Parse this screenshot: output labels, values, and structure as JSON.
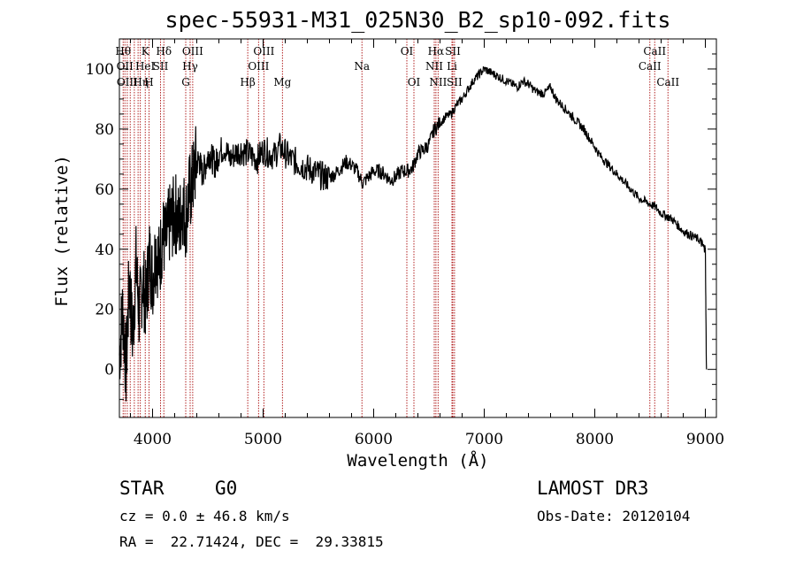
{
  "chart_data": {
    "type": "line",
    "title": "spec-55931-M31_025N30_B2_sp10-092.fits",
    "xlabel": "Wavelength (Å)",
    "ylabel": "Flux (relative)",
    "xlim": [
      3700,
      9100
    ],
    "ylim": [
      -16,
      110
    ],
    "xticks": [
      4000,
      5000,
      6000,
      7000,
      8000,
      9000
    ],
    "yticks": [
      0,
      20,
      40,
      60,
      80,
      100
    ],
    "grid": false,
    "line_color": "#000000",
    "marker_color": "#b22222",
    "series": [
      {
        "x": [
          3700,
          3730,
          3760,
          3790,
          3820,
          3850,
          3880,
          3910,
          3940,
          3970,
          4000,
          4030,
          4060,
          4090,
          4120,
          4150,
          4180,
          4210,
          4240,
          4270,
          4300,
          4330,
          4360,
          4390,
          4420,
          4450,
          4480,
          4510,
          4540,
          4570,
          4600,
          4650,
          4700,
          4750,
          4800,
          4850,
          4900,
          4950,
          5000,
          5050,
          5100,
          5150,
          5200,
          5250,
          5300,
          5350,
          5400,
          5450,
          5500,
          5550,
          5600,
          5650,
          5700,
          5750,
          5800,
          5850,
          5900,
          5950,
          6000,
          6050,
          6100,
          6150,
          6200,
          6250,
          6300,
          6350,
          6400,
          6450,
          6500,
          6550,
          6600,
          6650,
          6700,
          6750,
          6800,
          6850,
          6900,
          6950,
          7000,
          7050,
          7100,
          7150,
          7200,
          7250,
          7300,
          7350,
          7400,
          7450,
          7500,
          7550,
          7600,
          7650,
          7700,
          7750,
          7800,
          7850,
          7900,
          7950,
          8000,
          8050,
          8100,
          8150,
          8200,
          8250,
          8300,
          8350,
          8400,
          8450,
          8500,
          8550,
          8600,
          8650,
          8700,
          8750,
          8800,
          8850,
          8900,
          8950,
          8980,
          9000,
          9010
        ],
        "y": [
          5,
          20,
          0,
          30,
          10,
          35,
          18,
          30,
          22,
          38,
          30,
          40,
          35,
          45,
          42,
          48,
          50,
          52,
          48,
          55,
          50,
          58,
          62,
          68,
          70,
          65,
          68,
          72,
          70,
          68,
          72,
          74,
          70,
          72,
          73,
          72,
          71,
          70,
          73,
          72,
          71,
          74,
          72,
          70,
          69,
          68,
          67,
          66,
          65,
          64,
          64,
          65,
          67,
          69,
          68,
          66,
          62,
          64,
          66,
          66,
          65,
          63,
          64,
          66,
          66,
          67,
          72,
          73,
          75,
          80,
          82,
          84,
          85,
          88,
          90,
          93,
          96,
          98,
          100,
          99,
          98,
          97,
          96,
          95,
          94,
          96,
          95,
          93,
          92,
          92,
          94,
          90,
          88,
          86,
          84,
          82,
          80,
          77,
          74,
          71,
          69,
          67,
          65,
          63,
          61,
          59,
          57,
          56,
          55,
          54,
          52,
          51,
          50,
          48,
          46,
          45,
          44,
          43,
          41,
          40,
          0
        ]
      }
    ],
    "lines": [
      {
        "wl": 3734,
        "label": "Hθ",
        "row": 1,
        "offset": 0
      },
      {
        "wl": 3750,
        "label": "OII",
        "row": 2,
        "offset": 0
      },
      {
        "wl": 3771,
        "label": "OIII",
        "row": 3,
        "offset": 0
      },
      {
        "wl": 3798,
        "label": "Hη",
        "row": 3,
        "offset": 12
      },
      {
        "wl": 3835,
        "label": "",
        "row": 0,
        "offset": 0
      },
      {
        "wl": 3869,
        "label": "HeI",
        "row": 2,
        "offset": 8
      },
      {
        "wl": 3889,
        "label": "",
        "row": 0,
        "offset": 0
      },
      {
        "wl": 3934,
        "label": "K",
        "row": 1,
        "offset": 0
      },
      {
        "wl": 3968,
        "label": "H",
        "row": 3,
        "offset": 0
      },
      {
        "wl": 4072,
        "label": "SII",
        "row": 2,
        "offset": 0
      },
      {
        "wl": 4102,
        "label": "Hδ",
        "row": 1,
        "offset": 0
      },
      {
        "wl": 4300,
        "label": "G",
        "row": 3,
        "offset": 0
      },
      {
        "wl": 4340,
        "label": "Hγ",
        "row": 2,
        "offset": 0
      },
      {
        "wl": 4363,
        "label": "OIII",
        "row": 1,
        "offset": 0
      },
      {
        "wl": 4861,
        "label": "Hβ",
        "row": 3,
        "offset": 0
      },
      {
        "wl": 4959,
        "label": "OIII",
        "row": 2,
        "offset": 0
      },
      {
        "wl": 5007,
        "label": "OIII",
        "row": 1,
        "offset": 0
      },
      {
        "wl": 5175,
        "label": "Mg",
        "row": 3,
        "offset": 0
      },
      {
        "wl": 5894,
        "label": "Na",
        "row": 2,
        "offset": 0
      },
      {
        "wl": 6300,
        "label": "OI",
        "row": 1,
        "offset": 0
      },
      {
        "wl": 6364,
        "label": "OI",
        "row": 3,
        "offset": 0
      },
      {
        "wl": 6548,
        "label": "NII",
        "row": 2,
        "offset": 0
      },
      {
        "wl": 6563,
        "label": "Hα",
        "row": 1,
        "offset": 0
      },
      {
        "wl": 6583,
        "label": "NII",
        "row": 3,
        "offset": 0
      },
      {
        "wl": 6708,
        "label": "Li",
        "row": 2,
        "offset": 0
      },
      {
        "wl": 6716,
        "label": "SII",
        "row": 1,
        "offset": 0
      },
      {
        "wl": 6731,
        "label": "SII",
        "row": 3,
        "offset": 0
      },
      {
        "wl": 8498,
        "label": "CaII",
        "row": 2,
        "offset": 0
      },
      {
        "wl": 8542,
        "label": "CaII",
        "row": 1,
        "offset": 0
      },
      {
        "wl": 8662,
        "label": "CaII",
        "row": 3,
        "offset": 0
      }
    ]
  },
  "info": {
    "class": "STAR",
    "subclass": "G0",
    "survey": "LAMOST DR3",
    "cz": "cz = 0.0 ± 46.8 km/s",
    "obsdate": "Obs-Date: 20120104",
    "radec": "RA =  22.71424, DEC =  29.33815"
  }
}
